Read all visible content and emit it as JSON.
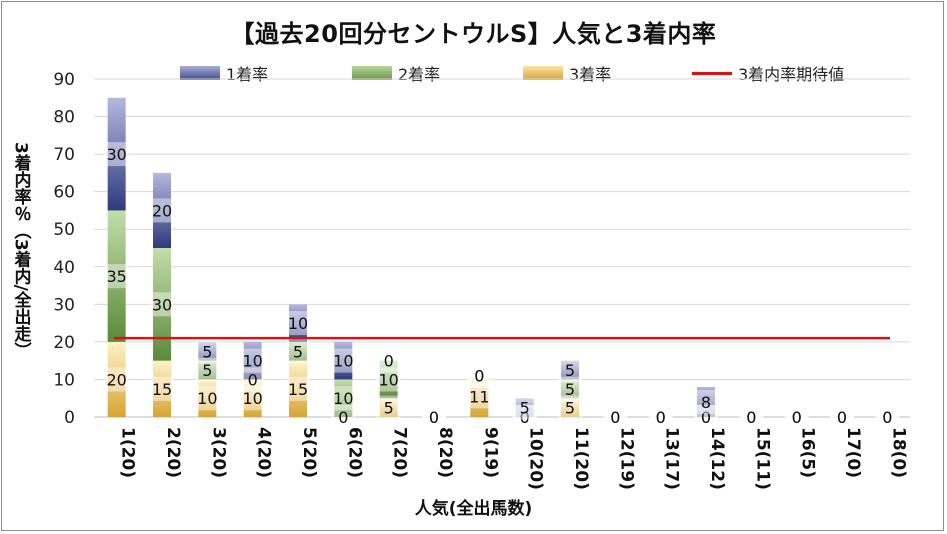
{
  "chart_data": {
    "type": "bar",
    "stacked": true,
    "title": "【過去20回分セントウルS】人気と3着内率",
    "xlabel": "人気(全出馬数)",
    "ylabel": "3着内率％（3着内/全出走）",
    "ylim": [
      0,
      90
    ],
    "yticks": [
      0,
      10,
      20,
      30,
      40,
      50,
      60,
      70,
      80,
      90
    ],
    "grid": true,
    "legend_position": "top",
    "categories": [
      "1(20)",
      "2(20)",
      "3(20)",
      "4(20)",
      "5(20)",
      "6(20)",
      "7(20)",
      "8(20)",
      "9(19)",
      "10(20)",
      "11(20)",
      "12(19)",
      "13(17)",
      "14(12)",
      "15(11)",
      "16(5)",
      "17(0)",
      "18(0)"
    ],
    "series": [
      {
        "name": "3着率",
        "color": "#e3b23c",
        "values": [
          20,
          15,
          10,
          10,
          15,
          0,
          5,
          0,
          11,
          0,
          5,
          0,
          0,
          0,
          0,
          0,
          0,
          0
        ]
      },
      {
        "name": "2着率",
        "color": "#6a9a45",
        "values": [
          35,
          30,
          5,
          0,
          5,
          10,
          10,
          0,
          0,
          0,
          5,
          0,
          0,
          0,
          0,
          0,
          0,
          0
        ]
      },
      {
        "name": "1着率",
        "color": "#3d4a8e",
        "values": [
          30,
          20,
          5,
          10,
          10,
          10,
          0,
          0,
          0,
          5,
          5,
          0,
          0,
          8,
          0,
          0,
          0,
          0
        ]
      }
    ],
    "reference_line": {
      "name": "3着内率期待値",
      "color": "#e01010",
      "value": 21
    }
  }
}
